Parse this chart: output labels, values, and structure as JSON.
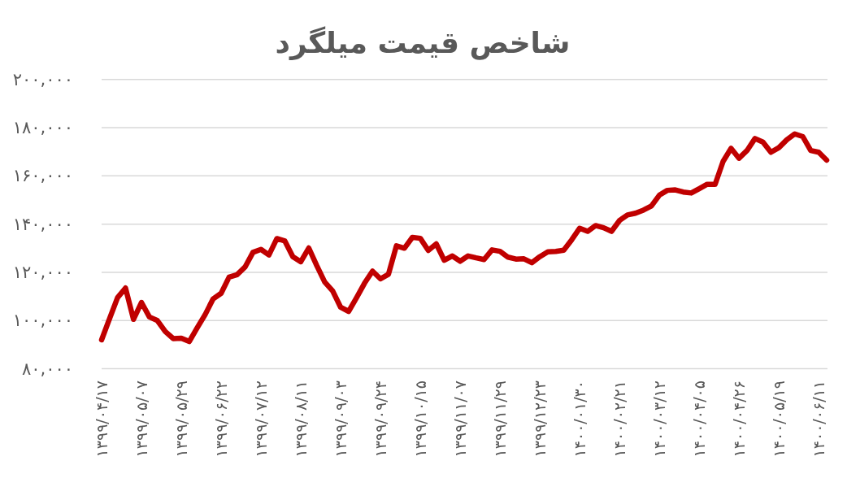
{
  "chart_data": {
    "type": "line",
    "title": "شاخص قیمت میلگرد",
    "categories": [
      "۱۳۹۹/۰۴/۱۷",
      null,
      null,
      null,
      null,
      "۱۳۹۹/۰۵/۰۷",
      null,
      null,
      null,
      null,
      "۱۳۹۹/۰۵/۲۹",
      null,
      null,
      null,
      null,
      "۱۳۹۹/۰۶/۲۲",
      null,
      null,
      null,
      null,
      "۱۳۹۹/۰۷/۱۲",
      null,
      null,
      null,
      null,
      "۱۳۹۹/۰۸/۱۱",
      null,
      null,
      null,
      null,
      "۱۳۹۹/۰۹/۰۳",
      null,
      null,
      null,
      null,
      "۱۳۹۹/۰۹/۲۴",
      null,
      null,
      null,
      null,
      "۱۳۹۹/۱۰/۱۵",
      null,
      null,
      null,
      null,
      "۱۳۹۹/۱۱/۰۷",
      null,
      null,
      null,
      null,
      "۱۳۹۹/۱۱/۲۹",
      null,
      null,
      null,
      null,
      "۱۳۹۹/۱۲/۲۳",
      null,
      null,
      null,
      null,
      "۱۴۰۰/۰۱/۳۰",
      null,
      null,
      null,
      null,
      "۱۴۰۰/۰۲/۲۱",
      null,
      null,
      null,
      null,
      "۱۴۰۰/۰۳/۱۲",
      null,
      null,
      null,
      null,
      "۱۴۰۰/۰۴/۰۵",
      null,
      null,
      null,
      null,
      "۱۴۰۰/۰۴/۲۶",
      null,
      null,
      null,
      null,
      "۱۴۰۰/۰۵/۱۹",
      null,
      null,
      null,
      null,
      "۱۴۰۰/۰۶/۱۱",
      null
    ],
    "series": [
      {
        "color": "#c00000",
        "values": [
          92000,
          100800,
          109500,
          113500,
          100500,
          107500,
          101500,
          100000,
          95400,
          92500,
          92700,
          91300,
          97000,
          102500,
          109000,
          111300,
          118000,
          119000,
          122200,
          128300,
          129500,
          127200,
          134000,
          133000,
          126500,
          124400,
          130100,
          122800,
          116000,
          112300,
          105500,
          103800,
          109500,
          115500,
          120500,
          117300,
          119200,
          131000,
          130000,
          134500,
          134100,
          129100,
          131800,
          125000,
          126800,
          124600,
          126800,
          126000,
          125300,
          129300,
          128700,
          126300,
          125500,
          125600,
          124000,
          126500,
          128500,
          128700,
          129200,
          133500,
          138300,
          137000,
          139400,
          138500,
          137000,
          141500,
          143800,
          144500,
          145800,
          147500,
          152000,
          154000,
          154200,
          153300,
          152900,
          154700,
          156500,
          156500,
          166000,
          171400,
          167300,
          170500,
          175500,
          174000,
          169800,
          171700,
          175000,
          177400,
          176300,
          170500,
          169800,
          166500
        ]
      }
    ],
    "ylim": [
      80000,
      200000
    ],
    "yticks": [
      {
        "value": 80000,
        "label": "۸۰,۰۰۰"
      },
      {
        "value": 100000,
        "label": "۱۰۰,۰۰۰"
      },
      {
        "value": 120000,
        "label": "۱۲۰,۰۰۰"
      },
      {
        "value": 140000,
        "label": "۱۴۰,۰۰۰"
      },
      {
        "value": 160000,
        "label": "۱۶۰,۰۰۰"
      },
      {
        "value": 180000,
        "label": "۱۸۰,۰۰۰"
      },
      {
        "value": 200000,
        "label": "۲۰۰,۰۰۰"
      }
    ],
    "grid": "y",
    "line_style": "solid"
  }
}
